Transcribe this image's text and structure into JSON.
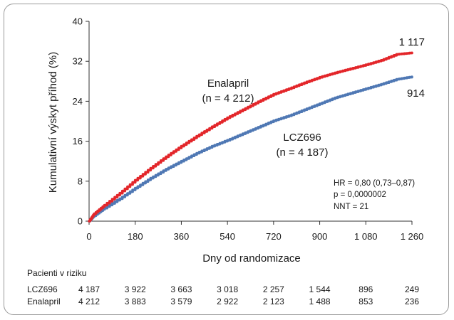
{
  "chart_data": {
    "type": "line",
    "title": "",
    "xlabel": "Dny od randomizace",
    "ylabel": "Kumulativní výskyt příhod (%)",
    "xlim": [
      0,
      1260
    ],
    "ylim": [
      0,
      40
    ],
    "x_ticks": [
      0,
      180,
      360,
      540,
      720,
      900,
      1080,
      1260
    ],
    "x_tick_labels": [
      "0",
      "180",
      "360",
      "540",
      "720",
      "900",
      "1 080",
      "1 260"
    ],
    "y_ticks": [
      0,
      8,
      16,
      24,
      32,
      40
    ],
    "y_tick_labels": [
      "0",
      "8",
      "16",
      "24",
      "32",
      "40"
    ],
    "grid": false,
    "series": [
      {
        "name": "Enalapril",
        "n_label": "(n = 4 212)",
        "color": "#e3262a",
        "end_label": "1 117",
        "x": [
          0,
          20,
          60,
          120,
          180,
          240,
          300,
          360,
          420,
          480,
          540,
          600,
          660,
          720,
          780,
          840,
          900,
          960,
          1020,
          1080,
          1140,
          1200,
          1260
        ],
        "y": [
          0,
          1.5,
          3.2,
          5.6,
          8.2,
          10.6,
          12.9,
          15.0,
          17.0,
          18.9,
          20.7,
          22.3,
          23.9,
          25.4,
          26.5,
          27.7,
          28.8,
          29.7,
          30.5,
          31.3,
          32.2,
          33.4,
          33.7
        ]
      },
      {
        "name": "LCZ696",
        "n_label": "(n = 4 187)",
        "color": "#4f78b4",
        "end_label": "914",
        "x": [
          0,
          20,
          60,
          120,
          180,
          240,
          300,
          360,
          420,
          480,
          540,
          600,
          660,
          720,
          780,
          840,
          900,
          960,
          1020,
          1080,
          1140,
          1200,
          1260
        ],
        "y": [
          0,
          1.1,
          2.6,
          4.5,
          6.6,
          8.6,
          10.4,
          12.0,
          13.6,
          15.0,
          16.2,
          17.5,
          18.8,
          20.1,
          21.1,
          22.3,
          23.5,
          24.7,
          25.6,
          26.5,
          27.4,
          28.4,
          28.9
        ]
      }
    ],
    "annotations": [
      "HR = 0,80 (0,73–0,87)",
      "p = 0,0000002",
      "NNT = 21"
    ]
  },
  "risk_table": {
    "title": "Pacienti v riziku",
    "rows": [
      {
        "label": "LCZ696",
        "values": [
          "4 187",
          "3 922",
          "3 663",
          "3 018",
          "2 257",
          "1 544",
          "896",
          "249"
        ]
      },
      {
        "label": "Enalapril",
        "values": [
          "4 212",
          "3 883",
          "3 579",
          "2 922",
          "2 123",
          "1 488",
          "853",
          "236"
        ]
      }
    ]
  }
}
